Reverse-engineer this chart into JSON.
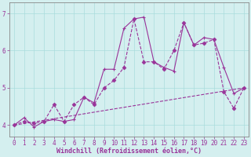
{
  "line1_x": [
    0,
    1,
    2,
    3,
    4,
    5,
    6,
    7,
    8,
    9,
    10,
    11,
    12,
    13,
    14,
    15,
    16,
    17,
    18,
    19,
    20,
    21,
    22,
    23
  ],
  "line1_y": [
    4.0,
    4.2,
    3.95,
    4.1,
    4.15,
    4.1,
    4.15,
    4.75,
    4.6,
    5.5,
    5.5,
    6.6,
    6.85,
    6.9,
    5.7,
    5.55,
    5.45,
    6.75,
    6.15,
    6.35,
    6.3,
    5.55,
    4.85,
    5.0
  ],
  "line2_x": [
    0,
    1,
    2,
    3,
    4,
    5,
    6,
    7,
    8,
    9,
    10,
    11,
    12,
    13,
    14,
    15,
    16,
    17,
    18,
    19,
    20,
    21,
    22,
    23
  ],
  "line2_y": [
    4.0,
    4.1,
    4.05,
    4.1,
    4.55,
    4.1,
    4.55,
    4.75,
    4.55,
    5.0,
    5.2,
    5.55,
    6.85,
    5.7,
    5.7,
    5.5,
    6.0,
    6.75,
    6.15,
    6.2,
    6.3,
    4.9,
    4.45,
    5.0
  ],
  "line3_x": [
    0,
    23
  ],
  "line3_y": [
    4.0,
    5.0
  ],
  "bg_color": "#d4efef",
  "line_color": "#993399",
  "grid_color": "#aadddd",
  "ylabel_vals": [
    4,
    5,
    6,
    7
  ],
  "xlabel_vals": [
    0,
    1,
    2,
    3,
    4,
    5,
    6,
    7,
    8,
    9,
    10,
    11,
    12,
    13,
    14,
    15,
    16,
    17,
    18,
    19,
    20,
    21,
    22,
    23
  ],
  "xlabel": "Windchill (Refroidissement éolien,°C)",
  "ylim": [
    3.7,
    7.3
  ],
  "xlim": [
    -0.5,
    23.5
  ],
  "tick_fontsize": 5.5,
  "xlabel_fontsize": 6.0
}
